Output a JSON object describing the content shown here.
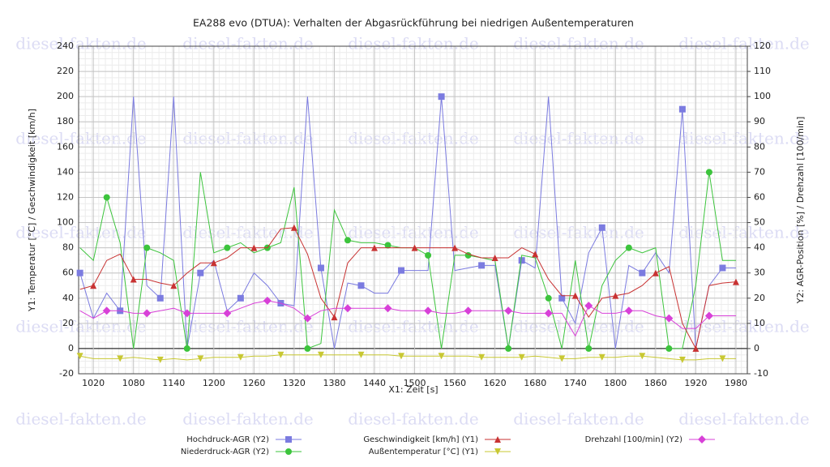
{
  "chart_data": {
    "type": "line",
    "title": "EA288 evo (DTUA): Verhalten der Abgasrückführung bei niedrigen Außentemperaturen",
    "watermark": "diesel-fakten.de",
    "x_label": "X1: Zeit [s]",
    "y_label": "Y1: Temperatur [°C] / Geschwindigkeit [km/h]",
    "y2_label": "Y2: AGR-Position [%] / Drehzahl [100/min]",
    "xlim": [
      998,
      1997
    ],
    "xticks": [
      1020,
      1080,
      1140,
      1200,
      1260,
      1320,
      1380,
      1440,
      1500,
      1560,
      1620,
      1680,
      1740,
      1800,
      1860,
      1920,
      1980
    ],
    "ylim": [
      -20,
      240
    ],
    "yticks": [
      -20,
      0,
      20,
      40,
      60,
      80,
      100,
      120,
      140,
      160,
      180,
      200,
      220,
      240
    ],
    "y2lim": [
      -10,
      120
    ],
    "y2ticks": [
      -10,
      0,
      10,
      20,
      30,
      40,
      50,
      60,
      70,
      80,
      90,
      100,
      110,
      120
    ],
    "grid": true,
    "x": [
      1000,
      1020,
      1040,
      1060,
      1080,
      1100,
      1120,
      1140,
      1160,
      1180,
      1200,
      1220,
      1240,
      1260,
      1280,
      1300,
      1320,
      1340,
      1360,
      1380,
      1400,
      1420,
      1440,
      1460,
      1480,
      1500,
      1520,
      1540,
      1560,
      1580,
      1600,
      1620,
      1640,
      1660,
      1680,
      1700,
      1720,
      1740,
      1760,
      1780,
      1800,
      1820,
      1840,
      1860,
      1880,
      1900,
      1920,
      1940,
      1960,
      1980
    ],
    "series": [
      {
        "name": "Hochdruck-AGR (Y2)",
        "color": "#7b7be0",
        "marker": "square",
        "axis": "y2",
        "values": [
          30,
          12,
          22,
          15,
          100,
          25,
          20,
          100,
          0,
          30,
          35,
          15,
          20,
          30,
          25,
          18,
          17,
          100,
          32,
          0,
          26,
          25,
          22,
          22,
          31,
          31,
          31,
          100,
          31,
          32,
          33,
          33,
          0,
          35,
          32,
          100,
          20,
          10,
          38,
          48,
          0,
          33,
          30,
          38,
          30,
          95,
          0,
          25,
          32,
          32
        ]
      },
      {
        "name": "Niederdruck-AGR (Y2)",
        "color": "#3cc43c",
        "marker": "circle",
        "axis": "y2",
        "values": [
          40,
          35,
          60,
          42,
          0,
          40,
          38,
          35,
          0,
          70,
          38,
          40,
          42,
          38,
          40,
          42,
          64,
          0,
          2,
          55,
          43,
          42,
          42,
          41,
          40,
          40,
          37,
          0,
          37,
          37,
          36,
          35,
          0,
          37,
          36,
          20,
          0,
          35,
          0,
          25,
          35,
          40,
          38,
          40,
          0,
          0,
          25,
          70,
          35,
          35
        ]
      },
      {
        "name": "Geschwindigkeit [km/h] (Y1)",
        "color": "#c83232",
        "marker": "triangle",
        "values": [
          47,
          50,
          70,
          75,
          55,
          55,
          52,
          50,
          60,
          68,
          68,
          72,
          80,
          80,
          80,
          95,
          96,
          75,
          40,
          25,
          68,
          80,
          80,
          80,
          80,
          80,
          80,
          80,
          80,
          75,
          72,
          72,
          72,
          80,
          75,
          55,
          42,
          42,
          25,
          40,
          42,
          44,
          50,
          60,
          65,
          20,
          0,
          50,
          52,
          53
        ]
      },
      {
        "name": "Außentemperatur [°C] (Y1)",
        "color": "#c8c832",
        "marker": "triangle-down",
        "values": [
          -6,
          -8,
          -8,
          -8,
          -7,
          -8,
          -9,
          -8,
          -9,
          -8,
          -7,
          -7,
          -7,
          -6,
          -6,
          -5,
          -5,
          -5,
          -5,
          -5,
          -5,
          -5,
          -5,
          -5,
          -6,
          -6,
          -6,
          -6,
          -6,
          -6,
          -7,
          -7,
          -7,
          -7,
          -6,
          -7,
          -8,
          -8,
          -7,
          -7,
          -7,
          -6,
          -6,
          -7,
          -8,
          -9,
          -9,
          -8,
          -8,
          -8
        ]
      },
      {
        "name": "Drehzahl [100/min] (Y2)",
        "color": "#d840d8",
        "marker": "diamond",
        "axis": "y2",
        "values": [
          15,
          12,
          15,
          15,
          14,
          14,
          15,
          16,
          14,
          14,
          14,
          14,
          16,
          18,
          19,
          18,
          16,
          12,
          15,
          16,
          16,
          16,
          16,
          16,
          15,
          15,
          15,
          14,
          14,
          15,
          15,
          15,
          15,
          14,
          14,
          14,
          14,
          5,
          17,
          14,
          14,
          15,
          15,
          13,
          12,
          8,
          8,
          13,
          13,
          13
        ]
      }
    ]
  }
}
